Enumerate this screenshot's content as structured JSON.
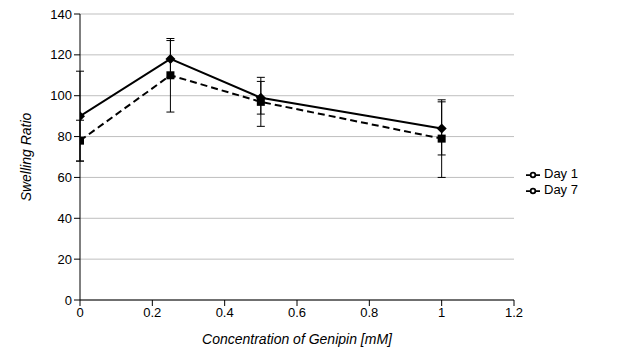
{
  "chart_data": {
    "type": "line",
    "xlabel": "Concentration of Genipin [mM]",
    "ylabel": "Swelling Ratio",
    "x": [
      0,
      0.25,
      0.5,
      1
    ],
    "xlim": [
      0,
      1.2
    ],
    "xticks": [
      0,
      0.2,
      0.4,
      0.6,
      0.8,
      1,
      1.2
    ],
    "ylim": [
      0,
      140
    ],
    "yticks": [
      0,
      20,
      40,
      60,
      80,
      100,
      120,
      140
    ],
    "grid": true,
    "legend": "right",
    "series": [
      {
        "name": "Day 1",
        "color": "#000000",
        "marker": "square",
        "line_style": "dashed",
        "values": [
          78,
          110,
          97,
          79
        ],
        "error": [
          10,
          18,
          12,
          19
        ]
      },
      {
        "name": "Day 7",
        "color": "#000000",
        "marker": "diamond",
        "line_style": "solid",
        "values": [
          90,
          118,
          99,
          84
        ],
        "error": [
          22,
          9,
          8,
          13
        ]
      }
    ]
  }
}
